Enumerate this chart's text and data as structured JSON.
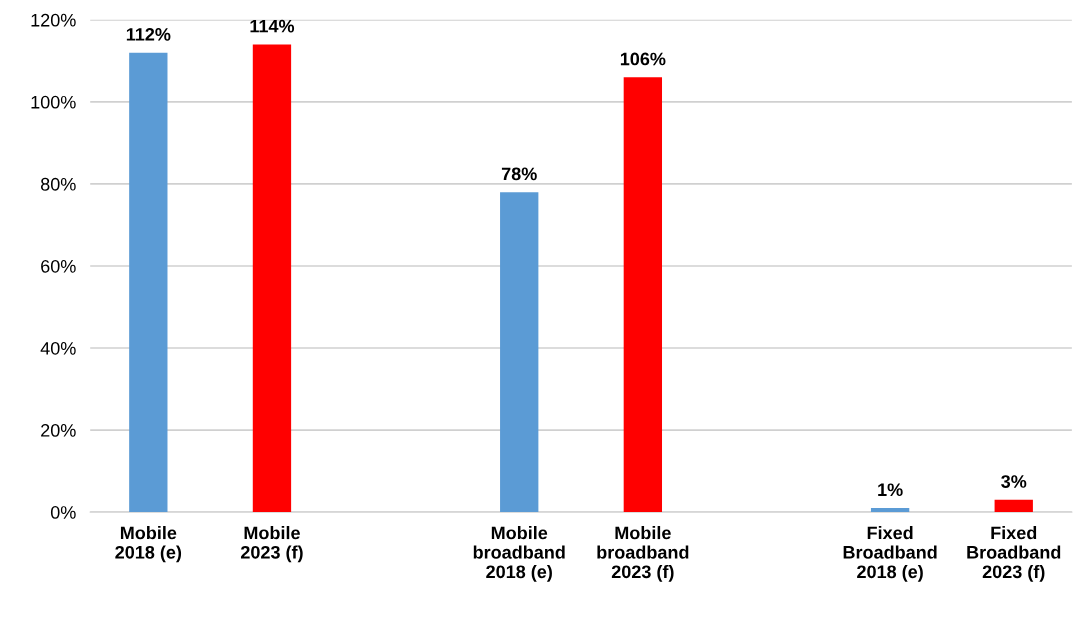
{
  "chart_data": {
    "type": "bar",
    "categories": [
      "Mobile\n2018 (e)",
      "Mobile\n2023 (f)",
      null,
      "Mobile\nbroadband\n2018 (e)",
      "Mobile\nbroadband\n2023 (f)",
      null,
      "Fixed\nBroadband\n2018 (e)",
      "Fixed\nBroadband\n2023 (f)"
    ],
    "values": [
      112,
      114,
      null,
      78,
      106,
      null,
      1,
      3
    ],
    "colors": [
      "#5b9bd5",
      "#ff0000",
      "#5b9bd5",
      "#5b9bd5",
      "#ff0000",
      "#5b9bd5",
      "#5b9bd5",
      "#ff0000"
    ],
    "value_labels": [
      "112%",
      "114%",
      null,
      "78%",
      "106%",
      null,
      "1%",
      "3%"
    ],
    "ylim": [
      0,
      120
    ],
    "yticks": [
      {
        "value": 0,
        "label": "0%"
      },
      {
        "value": 20,
        "label": "20%"
      },
      {
        "value": 40,
        "label": "40%"
      },
      {
        "value": 60,
        "label": "60%"
      },
      {
        "value": 80,
        "label": "80%"
      },
      {
        "value": 100,
        "label": "100%"
      },
      {
        "value": 120,
        "label": "120%"
      }
    ],
    "grid": "y"
  }
}
